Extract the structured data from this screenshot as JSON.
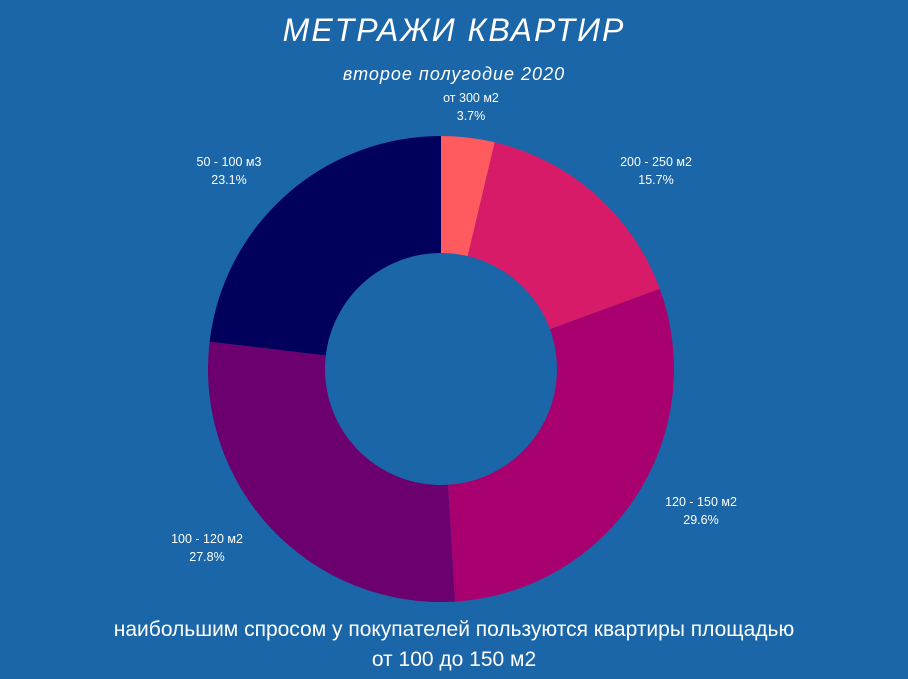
{
  "chart_data": {
    "type": "pie",
    "title": "МЕТРАЖИ КВАРТИР",
    "subtitle": "второе полугодие 2020",
    "slices": [
      {
        "name": "от 300 м2",
        "value": 3.7,
        "label": "3.7%",
        "color": "#ff5a5e"
      },
      {
        "name": "200 - 250 м2",
        "value": 15.7,
        "label": "15.7%",
        "color": "#d81b68"
      },
      {
        "name": "120 - 150 м2",
        "value": 29.6,
        "label": "29.6%",
        "color": "#a8006f"
      },
      {
        "name": "100 - 120 м2",
        "value": 27.8,
        "label": "27.8%",
        "color": "#6b006e"
      },
      {
        "name": "50 - 100 м3",
        "value": 23.1,
        "label": "23.1%",
        "color": "#01005c"
      }
    ]
  },
  "footer": {
    "line1": "наибольшим спросом у покупателей пользуются квартиры площадью",
    "line2": "от 100 до 150 м2"
  }
}
